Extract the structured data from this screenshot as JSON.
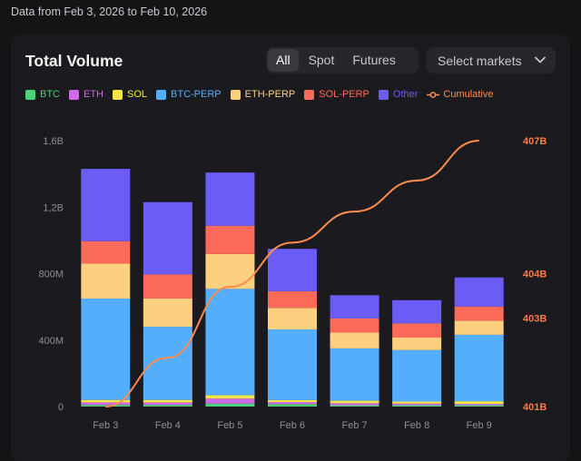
{
  "date_range": "Data from Feb 3, 2026 to Feb 10, 2026",
  "title": "Total Volume",
  "filters": [
    {
      "label": "All",
      "active": true
    },
    {
      "label": "Spot",
      "active": false
    },
    {
      "label": "Futures",
      "active": false
    }
  ],
  "select_markets": "Select markets",
  "colors": {
    "BTC": "#4ed07a",
    "ETH": "#d06ae8",
    "SOL": "#f5e64a",
    "BTC-PERP": "#55aefc",
    "ETH-PERP": "#fcd07e",
    "SOL-PERP": "#fc6a5a",
    "Other": "#6b5cf6",
    "Cumulative": "#ff8c4c"
  },
  "chart_data": {
    "type": "bar",
    "stacked": true,
    "categories": [
      "Feb 3",
      "Feb 4",
      "Feb 5",
      "Feb 6",
      "Feb 7",
      "Feb 8",
      "Feb 9"
    ],
    "series": [
      {
        "name": "BTC",
        "values": [
          10,
          10,
          18,
          15,
          8,
          8,
          8
        ]
      },
      {
        "name": "ETH",
        "values": [
          15,
          15,
          30,
          12,
          12,
          10,
          8
        ]
      },
      {
        "name": "SOL",
        "values": [
          15,
          15,
          20,
          12,
          15,
          12,
          16
        ]
      },
      {
        "name": "BTC-PERP",
        "values": [
          610,
          440,
          640,
          425,
          315,
          310,
          400
        ]
      },
      {
        "name": "ETH-PERP",
        "values": [
          210,
          170,
          210,
          130,
          95,
          75,
          85
        ]
      },
      {
        "name": "SOL-PERP",
        "values": [
          135,
          145,
          170,
          100,
          85,
          85,
          85
        ]
      },
      {
        "name": "Other",
        "values": [
          435,
          435,
          320,
          255,
          140,
          140,
          175
        ]
      }
    ],
    "cumulative": {
      "name": "Cumulative",
      "values": [
        401.0,
        402.1,
        403.7,
        404.7,
        405.4,
        406.1,
        407.0
      ],
      "axis_ticks": [
        401,
        403,
        404,
        407
      ],
      "axis_labels": [
        "401B",
        "403B",
        "404B",
        "407B"
      ]
    },
    "y_ticks": [
      0,
      400,
      800,
      1200,
      1600
    ],
    "y_tick_labels": [
      "0",
      "400M",
      "800M",
      "1,2B",
      "1,6B"
    ],
    "ylim": [
      0,
      1600
    ],
    "legend_position": "top-left"
  }
}
